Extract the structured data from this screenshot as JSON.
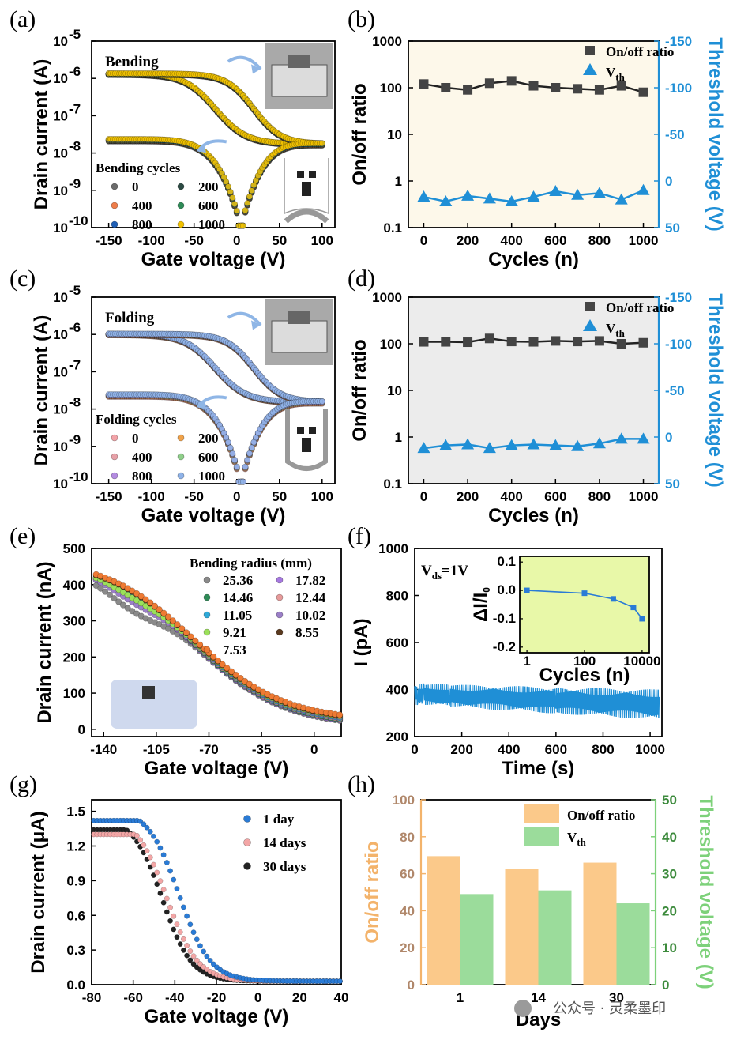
{
  "watermark": "公众号 · 灵柔墨印",
  "colors": {
    "blue_axis": "#1f8fd6",
    "green_axis": "#7dd17a",
    "orange_axis": "#f3b36b",
    "dark_marker": "#444444",
    "cream_bg": "#fdf8ea",
    "grey_bg": "#ececec",
    "lime_bg": "#e8f8a8"
  },
  "chart_data": [
    {
      "panel": "(a)",
      "type": "scatter",
      "annotation": "Bending",
      "xlabel": "Gate voltage (V)",
      "ylabel": "Drain current (A)",
      "xlim": [
        -170,
        115
      ],
      "ylim_log10": [
        -10,
        -5
      ],
      "x_ticks": [
        "-150",
        "-100",
        "-50",
        "0",
        "50",
        "100"
      ],
      "y_ticks": [
        "10",
        "10",
        "10",
        "10",
        "10",
        "10"
      ],
      "y_tick_exps": [
        "-10",
        "-9",
        "-8",
        "-7",
        "-6",
        "-5"
      ],
      "legend_title": "Bending cycles",
      "series": [
        {
          "name": "0",
          "color": "#6b6b6b"
        },
        {
          "name": "200",
          "color": "#2c4a43"
        },
        {
          "name": "400",
          "color": "#ee7d4a"
        },
        {
          "name": "600",
          "color": "#2e8b57"
        },
        {
          "name": "800",
          "color": "#1f5fb5"
        },
        {
          "name": "1000",
          "color": "#f2c200"
        }
      ],
      "transfer_curve": {
        "on_current": 1.3e-06,
        "reverse_low": 2.2e-08,
        "min_current": 1e-10,
        "x_min_at": 5,
        "end_current": 1.7e-08
      }
    },
    {
      "panel": "(b)",
      "type": "line",
      "xlabel": "Cycles (n)",
      "ylabel": "On/off ratio",
      "y2label": "Threshold voltage (V)",
      "x": [
        0,
        100,
        200,
        300,
        400,
        500,
        600,
        700,
        800,
        900,
        1000
      ],
      "x_ticks": [
        "0",
        "200",
        "400",
        "600",
        "800",
        "1000"
      ],
      "ylim_log10": [
        -1,
        3
      ],
      "y_ticks": [
        "0.1",
        "1",
        "10",
        "100",
        "1000"
      ],
      "y2lim": [
        50,
        -150
      ],
      "y2_ticks": [
        "50",
        "0",
        "-50",
        "-100",
        "-150"
      ],
      "series": [
        {
          "name": "On/off ratio",
          "axis": "left",
          "values": [
            120,
            100,
            90,
            125,
            140,
            110,
            100,
            95,
            90,
            110,
            80
          ]
        },
        {
          "name": "V",
          "name_sub": "th",
          "axis": "right",
          "values": [
            17,
            22,
            16,
            19,
            22,
            17,
            11,
            15,
            13,
            20,
            10
          ]
        }
      ]
    },
    {
      "panel": "(c)",
      "type": "scatter",
      "annotation": "Folding",
      "xlabel": "Gate voltage (V)",
      "ylabel": "Drain current (A)",
      "xlim": [
        -170,
        115
      ],
      "ylim_log10": [
        -10,
        -5
      ],
      "x_ticks": [
        "-150",
        "-100",
        "-50",
        "0",
        "50",
        "100"
      ],
      "y_ticks": [
        "10",
        "10",
        "10",
        "10",
        "10",
        "10"
      ],
      "y_tick_exps": [
        "-10",
        "-9",
        "-8",
        "-7",
        "-6",
        "-5"
      ],
      "legend_title": "Folding cycles",
      "series": [
        {
          "name": "0",
          "color": "#f2a3a8"
        },
        {
          "name": "200",
          "color": "#f0a24a"
        },
        {
          "name": "400",
          "color": "#e7a1a8"
        },
        {
          "name": "600",
          "color": "#8fcf8a"
        },
        {
          "name": "800",
          "color": "#b38be0"
        },
        {
          "name": "1000",
          "color": "#8fb3e8"
        }
      ],
      "transfer_curve": {
        "on_current": 1e-06,
        "reverse_low": 2.3e-08,
        "min_current": 1e-10,
        "x_min_at": 5,
        "end_current": 1.5e-08
      }
    },
    {
      "panel": "(d)",
      "type": "line",
      "xlabel": "Cycles (n)",
      "ylabel": "On/off ratio",
      "y2label": "Threshold voltage (V)",
      "x": [
        0,
        100,
        200,
        300,
        400,
        500,
        600,
        700,
        800,
        900,
        1000
      ],
      "x_ticks": [
        "0",
        "200",
        "400",
        "600",
        "800",
        "1000"
      ],
      "ylim_log10": [
        -1,
        3
      ],
      "y_ticks": [
        "0.1",
        "1",
        "10",
        "100",
        "1000"
      ],
      "y2lim": [
        50,
        -150
      ],
      "y2_ticks": [
        "50",
        "0",
        "-50",
        "-100",
        "-150"
      ],
      "series": [
        {
          "name": "On/off ratio",
          "axis": "left",
          "values": [
            110,
            110,
            108,
            130,
            112,
            110,
            115,
            112,
            115,
            100,
            105
          ]
        },
        {
          "name": "V",
          "name_sub": "th",
          "axis": "right",
          "values": [
            12,
            9,
            8,
            12,
            9,
            8,
            9,
            10,
            7,
            2,
            2
          ]
        }
      ]
    },
    {
      "panel": "(e)",
      "type": "scatter",
      "xlabel": "Gate voltage (V)",
      "ylabel": "Drain current (nA)",
      "xlim": [
        -148,
        18
      ],
      "ylim": [
        -20,
        500
      ],
      "x_ticks": [
        "-140",
        "-105",
        "-70",
        "-35",
        "0"
      ],
      "y_ticks": [
        "0",
        "100",
        "200",
        "300",
        "400",
        "500"
      ],
      "legend_title": "Bending radius (mm)",
      "series": [
        {
          "name": "25.36",
          "color": "#8a8a8a"
        },
        {
          "name": "17.82",
          "color": "#a678e0"
        },
        {
          "name": "14.46",
          "color": "#2e8b57"
        },
        {
          "name": "12.44",
          "color": "#e69a9a"
        },
        {
          "name": "11.05",
          "color": "#2fa9d8"
        },
        {
          "name": "10.02",
          "color": "#9b7fc7"
        },
        {
          "name": "9.21",
          "color": "#9be05a"
        },
        {
          "name": "8.55",
          "color": "#5a3a1f"
        },
        {
          "name": "7.53",
          "color": "#ee7a33"
        }
      ]
    },
    {
      "panel": "(f)",
      "type": "area",
      "annotation_main": "V",
      "annotation_sub": "ds",
      "annotation_tail": "=1V",
      "xlabel": "Time (s)",
      "ylabel": "I (pA)",
      "xlim": [
        0,
        1050
      ],
      "ylim": [
        200,
        1000
      ],
      "x_ticks": [
        "0",
        "200",
        "400",
        "600",
        "800",
        "1000"
      ],
      "y_ticks": [
        "200",
        "400",
        "600",
        "800",
        "1000"
      ],
      "signal": {
        "mean_start": 380,
        "mean_end": 335,
        "band_start": 90,
        "band_end": 130
      },
      "inset": {
        "xlabel": "Cycles (n)",
        "ylabel": "ΔI/I",
        "ylabel_sub": "0",
        "x_log10": [
          0,
          4
        ],
        "x_ticks": [
          "1",
          "100",
          "10000"
        ],
        "ylim": [
          -0.22,
          0.12
        ],
        "y_ticks": [
          "-0.2",
          "-0.1",
          "0.0",
          "0.1"
        ],
        "x": [
          1,
          100,
          1000,
          5000,
          10000
        ],
        "values": [
          0,
          -0.01,
          -0.03,
          -0.06,
          -0.1
        ]
      }
    },
    {
      "panel": "(g)",
      "type": "scatter",
      "xlabel": "Gate voltage (V)",
      "ylabel": "Drain current (μA)",
      "xlim": [
        -80,
        40
      ],
      "ylim": [
        0,
        1.6
      ],
      "x_ticks": [
        "-80",
        "-60",
        "-40",
        "-20",
        "0",
        "20",
        "40"
      ],
      "y_ticks": [
        "0.0",
        "0.3",
        "0.6",
        "0.9",
        "1.2",
        "1.5"
      ],
      "series": [
        {
          "name": "1 day",
          "color": "#2a7bd6",
          "curve": {
            "start": 1.39,
            "mid": -38,
            "width": 7.5,
            "scale": 1.5
          }
        },
        {
          "name": "14 days",
          "color": "#f3a6a6",
          "curve": {
            "start": 1.27,
            "mid": -44,
            "width": 7.5,
            "scale": 1.45
          }
        },
        {
          "name": "30 days",
          "color": "#222222",
          "curve": {
            "start": 1.31,
            "mid": -46,
            "width": 7.0,
            "scale": 1.42
          }
        }
      ]
    },
    {
      "panel": "(h)",
      "type": "bar",
      "xlabel": "Days",
      "ylabel": "On/off ratio",
      "y2label": "Threshold voltage (V)",
      "categories": [
        "1",
        "14",
        "30"
      ],
      "ylim": [
        0,
        100
      ],
      "y_ticks": [
        "0",
        "20",
        "40",
        "60",
        "80",
        "100"
      ],
      "y2lim": [
        0,
        50
      ],
      "y2_ticks": [
        "0",
        "10",
        "20",
        "30",
        "40",
        "50"
      ],
      "series": [
        {
          "name": "On/off ratio",
          "axis": "left",
          "color": "#fbc98a",
          "values": [
            69.5,
            62.5,
            66
          ]
        },
        {
          "name": "V",
          "name_sub": "th",
          "axis": "right",
          "color": "#9bdc9b",
          "values": [
            24.5,
            25.5,
            22
          ]
        }
      ]
    }
  ]
}
